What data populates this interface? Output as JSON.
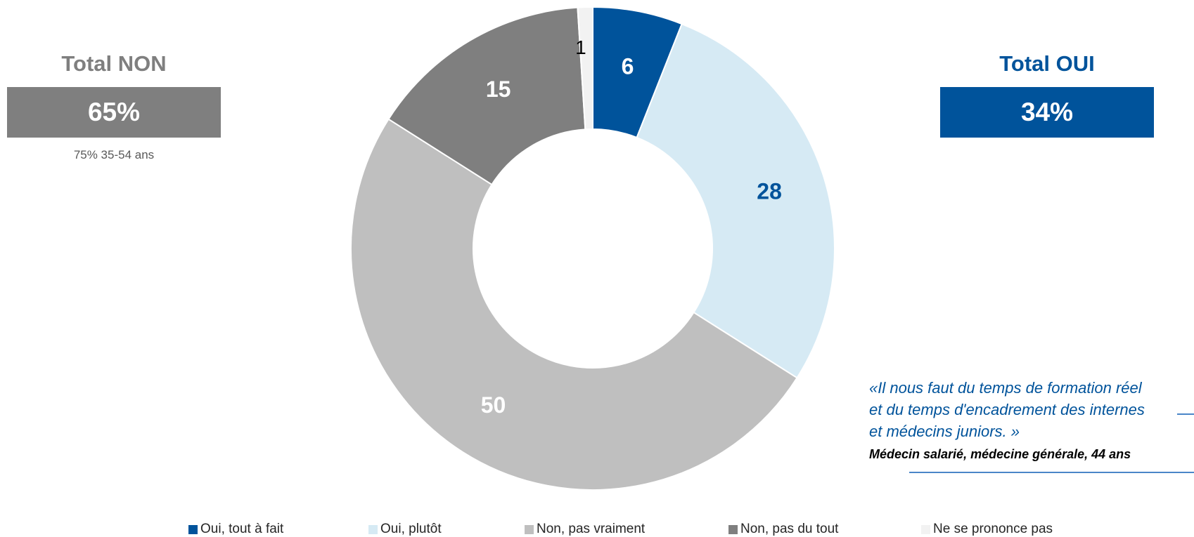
{
  "chart_data": {
    "type": "pie",
    "donut": true,
    "categories": [
      "Oui, tout à fait",
      "Oui, plutôt",
      "Non, pas vraiment",
      "Non, pas du tout",
      "Ne se prononce pas"
    ],
    "values": [
      6,
      28,
      50,
      15,
      1
    ],
    "colors": [
      "#00539b",
      "#d6eaf4",
      "#bfbfbf",
      "#7f7f7f",
      "#f2f2f2"
    ],
    "label_colors": [
      "#ffffff",
      "#00539b",
      "#ffffff",
      "#ffffff",
      "#000000"
    ],
    "legend_position": "bottom"
  },
  "summary": {
    "non_title": "Total NON",
    "non_value": "65%",
    "non_note": "75% 35-54 ans",
    "oui_title": "Total OUI",
    "oui_value": "34%"
  },
  "quote": {
    "lines": [
      "«Il nous faut du temps de formation réel",
      "et du temps d'encadrement des internes",
      "et médecins juniors. »"
    ],
    "author": "Médecin salarié, médecine générale, 44 ans"
  }
}
